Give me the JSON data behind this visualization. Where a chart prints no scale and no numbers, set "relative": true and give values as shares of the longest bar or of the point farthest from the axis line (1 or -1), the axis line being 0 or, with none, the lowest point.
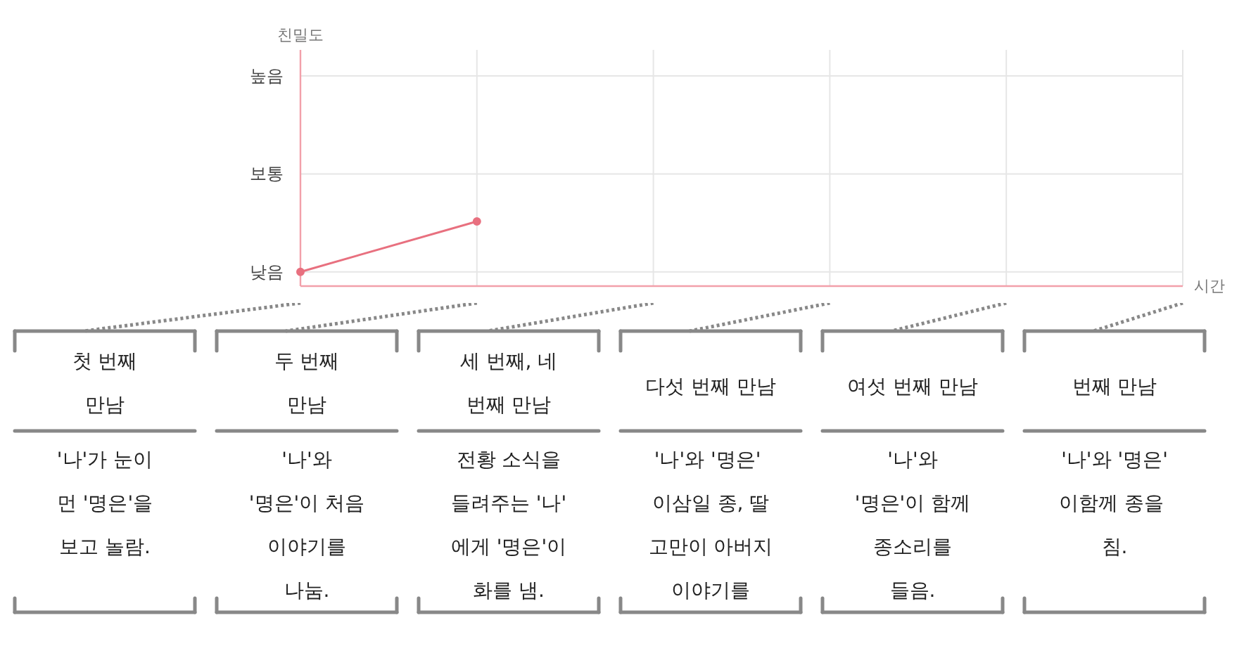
{
  "chart_data": {
    "type": "line",
    "xlabel": "시간",
    "categories": [
      null,
      null,
      null,
      null,
      null,
      null
    ],
    "series": [
      {
        "color": "#e8707f",
        "values": [
          0.22,
          1,
          null,
          null,
          null,
          null
        ]
      }
    ],
    "relative": true,
    "grid": true,
    "marker": "circle",
    "line_style": "solid",
    "annotations": [
      "친밀도",
      "낮음",
      "보통",
      "높음",
      "첫 번째\n만남",
      "'나'가 눈이\n먼 '명은'을\n보고 놀람.",
      "두 번째\n만남",
      "'나'와\n'명은'이 처음\n이야기를\n나눔.",
      "세 번째, 네\n번째 만남",
      "전황 소식을\n들려주는 '나'\n에게 '명은'이\n화를 냄.",
      "다섯 번째 만남",
      "'나'와  '명은'\n이삼일 종, 딸\n고만이 아버지\n이야기를",
      "여섯 번째 만남",
      "'나'와\n'명은'이 함께\n종소리를\n들음.",
      "번째 만남",
      "'나'와 '명은'\n이함께  종을\n침."
    ]
  }
}
